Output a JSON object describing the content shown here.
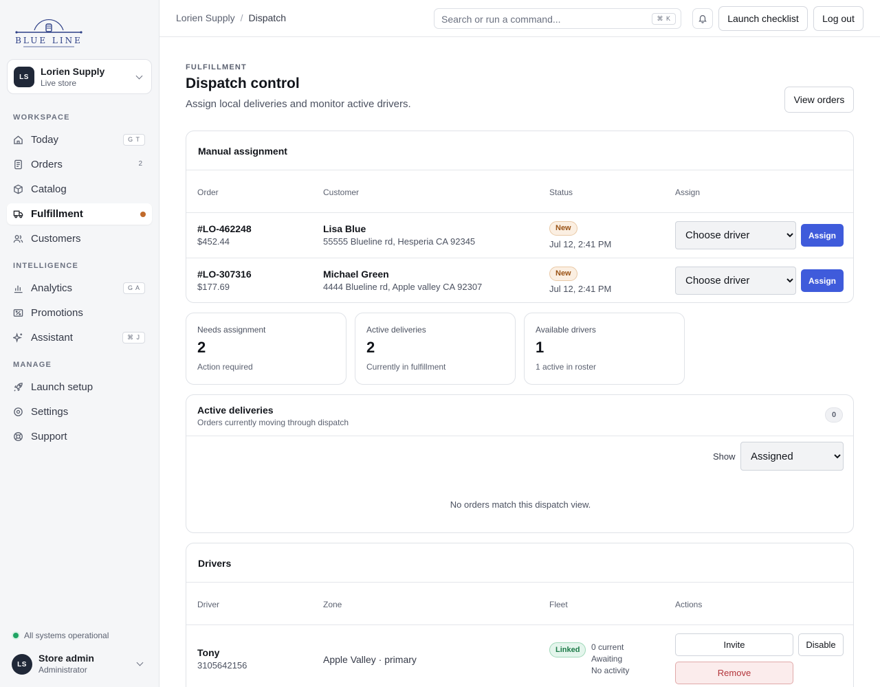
{
  "brand": {
    "logo_text": "BLUE LINE"
  },
  "store": {
    "initials": "LS",
    "name": "Lorien Supply",
    "status": "Live store"
  },
  "sidebar": {
    "sections": [
      {
        "label": "WORKSPACE",
        "items": [
          {
            "label": "Today",
            "icon": "home-icon",
            "shortcut": "G T"
          },
          {
            "label": "Orders",
            "icon": "receipt-icon",
            "count": "2"
          },
          {
            "label": "Catalog",
            "icon": "box-icon"
          },
          {
            "label": "Fulfillment",
            "icon": "truck-icon",
            "active": true,
            "dot_color": "#c06a2b"
          },
          {
            "label": "Customers",
            "icon": "users-icon"
          }
        ]
      },
      {
        "label": "INTELLIGENCE",
        "items": [
          {
            "label": "Analytics",
            "icon": "bar-chart-icon",
            "shortcut": "G A"
          },
          {
            "label": "Promotions",
            "icon": "ticket-icon"
          },
          {
            "label": "Assistant",
            "icon": "sparkle-icon",
            "shortcut": "⌘ J"
          }
        ]
      },
      {
        "label": "MANAGE",
        "items": [
          {
            "label": "Launch setup",
            "icon": "rocket-icon"
          },
          {
            "label": "Settings",
            "icon": "gear-icon"
          },
          {
            "label": "Support",
            "icon": "lifebuoy-icon"
          }
        ]
      }
    ],
    "system_status": "All systems operational",
    "user": {
      "initials": "LS",
      "name": "Store admin",
      "role": "Administrator"
    }
  },
  "topbar": {
    "breadcrumb": [
      "Lorien Supply",
      "Dispatch"
    ],
    "search_placeholder": "Search or run a command...",
    "search_shortcut": "⌘ K",
    "launch_checklist": "Launch checklist",
    "logout": "Log out"
  },
  "page": {
    "eyebrow": "FULFILLMENT",
    "title": "Dispatch control",
    "subtitle": "Assign local deliveries and monitor active drivers.",
    "view_orders": "View orders"
  },
  "manual_assignment": {
    "title": "Manual assignment",
    "columns": [
      "Order",
      "Customer",
      "Status",
      "Assign"
    ],
    "rows": [
      {
        "order": "#LO-462248",
        "amount": "$452.44",
        "customer": "Lisa Blue",
        "address": "55555 Blueline rd, Hesperia CA 92345",
        "status": "New",
        "time": "Jul 12, 2:41 PM",
        "driver_select": "Choose driver",
        "assign": "Assign"
      },
      {
        "order": "#LO-307316",
        "amount": "$177.69",
        "customer": "Michael Green",
        "address": "4444 Blueline rd, Apple valley CA 92307",
        "status": "New",
        "time": "Jul 12, 2:41 PM",
        "driver_select": "Choose driver",
        "assign": "Assign"
      }
    ]
  },
  "stats": [
    {
      "label": "Needs assignment",
      "value": "2",
      "sub": "Action required"
    },
    {
      "label": "Active deliveries",
      "value": "2",
      "sub": "Currently in fulfillment"
    },
    {
      "label": "Available drivers",
      "value": "1",
      "sub": "1 active in roster"
    }
  ],
  "active_deliveries": {
    "title": "Active deliveries",
    "subtitle": "Orders currently moving through dispatch",
    "count": "0",
    "show_label": "Show",
    "filter": "Assigned",
    "empty": "No orders match this dispatch view."
  },
  "drivers": {
    "title": "Drivers",
    "columns": [
      "Driver",
      "Zone",
      "Fleet",
      "Actions"
    ],
    "rows": [
      {
        "name": "Tony",
        "phone": "3105642156",
        "zone": "Apple Valley · primary",
        "fleet_badge": "Linked",
        "fleet_lines": [
          "0 current",
          "Awaiting",
          "No activity"
        ],
        "invite": "Invite",
        "disable": "Disable",
        "remove": "Remove"
      }
    ]
  },
  "colors": {
    "accent": "#3f5bdb",
    "status_ok": "#1fa463",
    "new_badge": "#9a5316",
    "linked_badge": "#1c7a48",
    "danger": "#b2343a"
  }
}
